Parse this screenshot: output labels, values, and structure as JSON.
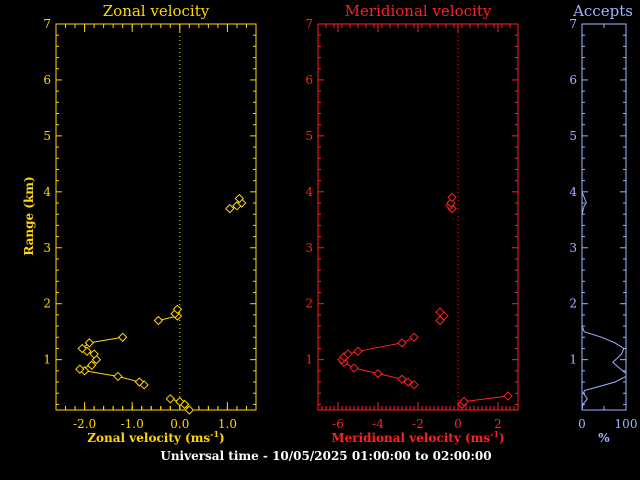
{
  "footer": "Universal time - 10/05/2025 01:00:00 to 02:00:00",
  "chart_data": [
    {
      "type": "line",
      "title": "Zonal velocity",
      "xlabel": "Zonal velocity (ms",
      "xlabel_exp": "-1",
      "ylabel": "Range (km)",
      "color": "#ffd700",
      "xlim": [
        -2.6,
        1.6
      ],
      "ylim": [
        0.1,
        7.0
      ],
      "xticks": [
        -2.0,
        -1.0,
        0.0,
        1.0
      ],
      "xtick_labels": [
        "-2.0",
        "-1.0",
        "0.0",
        "1.0"
      ],
      "yticks": [
        1,
        2,
        3,
        4,
        5,
        6,
        7
      ],
      "zero_line": 0,
      "segments": [
        [
          [
            0.2,
            0.1
          ],
          [
            0.1,
            0.2
          ],
          [
            0.0,
            0.25
          ],
          [
            -0.2,
            0.3
          ]
        ],
        [
          [
            -0.75,
            0.55
          ],
          [
            -0.85,
            0.6
          ],
          [
            -1.3,
            0.7
          ],
          [
            -2.0,
            0.8
          ],
          [
            -2.1,
            0.83
          ],
          [
            -1.85,
            0.9
          ],
          [
            -1.75,
            1.0
          ],
          [
            -1.8,
            1.1
          ],
          [
            -1.95,
            1.15
          ],
          [
            -2.05,
            1.2
          ],
          [
            -1.9,
            1.3
          ],
          [
            -1.2,
            1.4
          ]
        ],
        [
          [
            -0.45,
            1.7
          ],
          [
            -0.05,
            1.78
          ],
          [
            -0.1,
            1.82
          ],
          [
            -0.05,
            1.9
          ]
        ],
        [
          [
            1.05,
            3.7
          ],
          [
            1.2,
            3.75
          ],
          [
            1.3,
            3.8
          ],
          [
            1.25,
            3.88
          ]
        ]
      ]
    },
    {
      "type": "line",
      "title": "Meridional velocity",
      "xlabel": "Meridional velocity (ms",
      "xlabel_exp": "-1",
      "color": "#ff2020",
      "xlim": [
        -7,
        3
      ],
      "ylim": [
        0.1,
        7.0
      ],
      "xticks": [
        -6,
        -4,
        -2,
        0,
        2
      ],
      "xtick_labels": [
        "-6",
        "-4",
        "-2",
        "0",
        "2"
      ],
      "yticks": [
        1,
        2,
        3,
        4,
        5,
        6,
        7
      ],
      "zero_line": 0,
      "segments": [
        [
          [
            0.2,
            0.2
          ],
          [
            0.3,
            0.25
          ],
          [
            2.5,
            0.35
          ]
        ],
        [
          [
            -2.2,
            0.55
          ],
          [
            -2.5,
            0.6
          ],
          [
            -2.8,
            0.65
          ],
          [
            -4.0,
            0.75
          ],
          [
            -5.2,
            0.85
          ],
          [
            -5.7,
            0.95
          ],
          [
            -5.8,
            1.0
          ],
          [
            -5.7,
            1.05
          ],
          [
            -5.5,
            1.1
          ],
          [
            -5.0,
            1.15
          ],
          [
            -2.8,
            1.3
          ],
          [
            -2.2,
            1.4
          ]
        ],
        [
          [
            -0.9,
            1.7
          ],
          [
            -0.7,
            1.78
          ],
          [
            -0.9,
            1.85
          ]
        ],
        [
          [
            -0.3,
            3.7
          ],
          [
            -0.4,
            3.75
          ],
          [
            -0.35,
            3.8
          ],
          [
            -0.3,
            3.9
          ]
        ]
      ]
    },
    {
      "type": "line",
      "title": "Accepts",
      "xlabel": "%",
      "color": "#9fb4ff",
      "xlim": [
        0,
        100
      ],
      "ylim": [
        0.1,
        7.0
      ],
      "xticks": [
        0,
        100
      ],
      "xtick_labels": [
        "0",
        "100"
      ],
      "yticks": [
        1,
        2,
        3,
        4,
        5,
        6,
        7
      ],
      "line": [
        [
          0,
          0.1
        ],
        [
          2,
          0.2
        ],
        [
          12,
          0.3
        ],
        [
          3,
          0.4
        ],
        [
          6,
          0.45
        ],
        [
          30,
          0.5
        ],
        [
          75,
          0.6
        ],
        [
          100,
          0.7
        ],
        [
          100,
          0.75
        ],
        [
          85,
          0.85
        ],
        [
          70,
          0.95
        ],
        [
          90,
          1.1
        ],
        [
          95,
          1.2
        ],
        [
          75,
          1.3
        ],
        [
          45,
          1.4
        ],
        [
          5,
          1.5
        ],
        [
          0,
          1.6
        ],
        [
          0,
          3.6
        ],
        [
          5,
          3.75
        ],
        [
          10,
          3.8
        ],
        [
          5,
          3.9
        ],
        [
          0,
          4.0
        ],
        [
          0,
          7.0
        ]
      ]
    }
  ]
}
